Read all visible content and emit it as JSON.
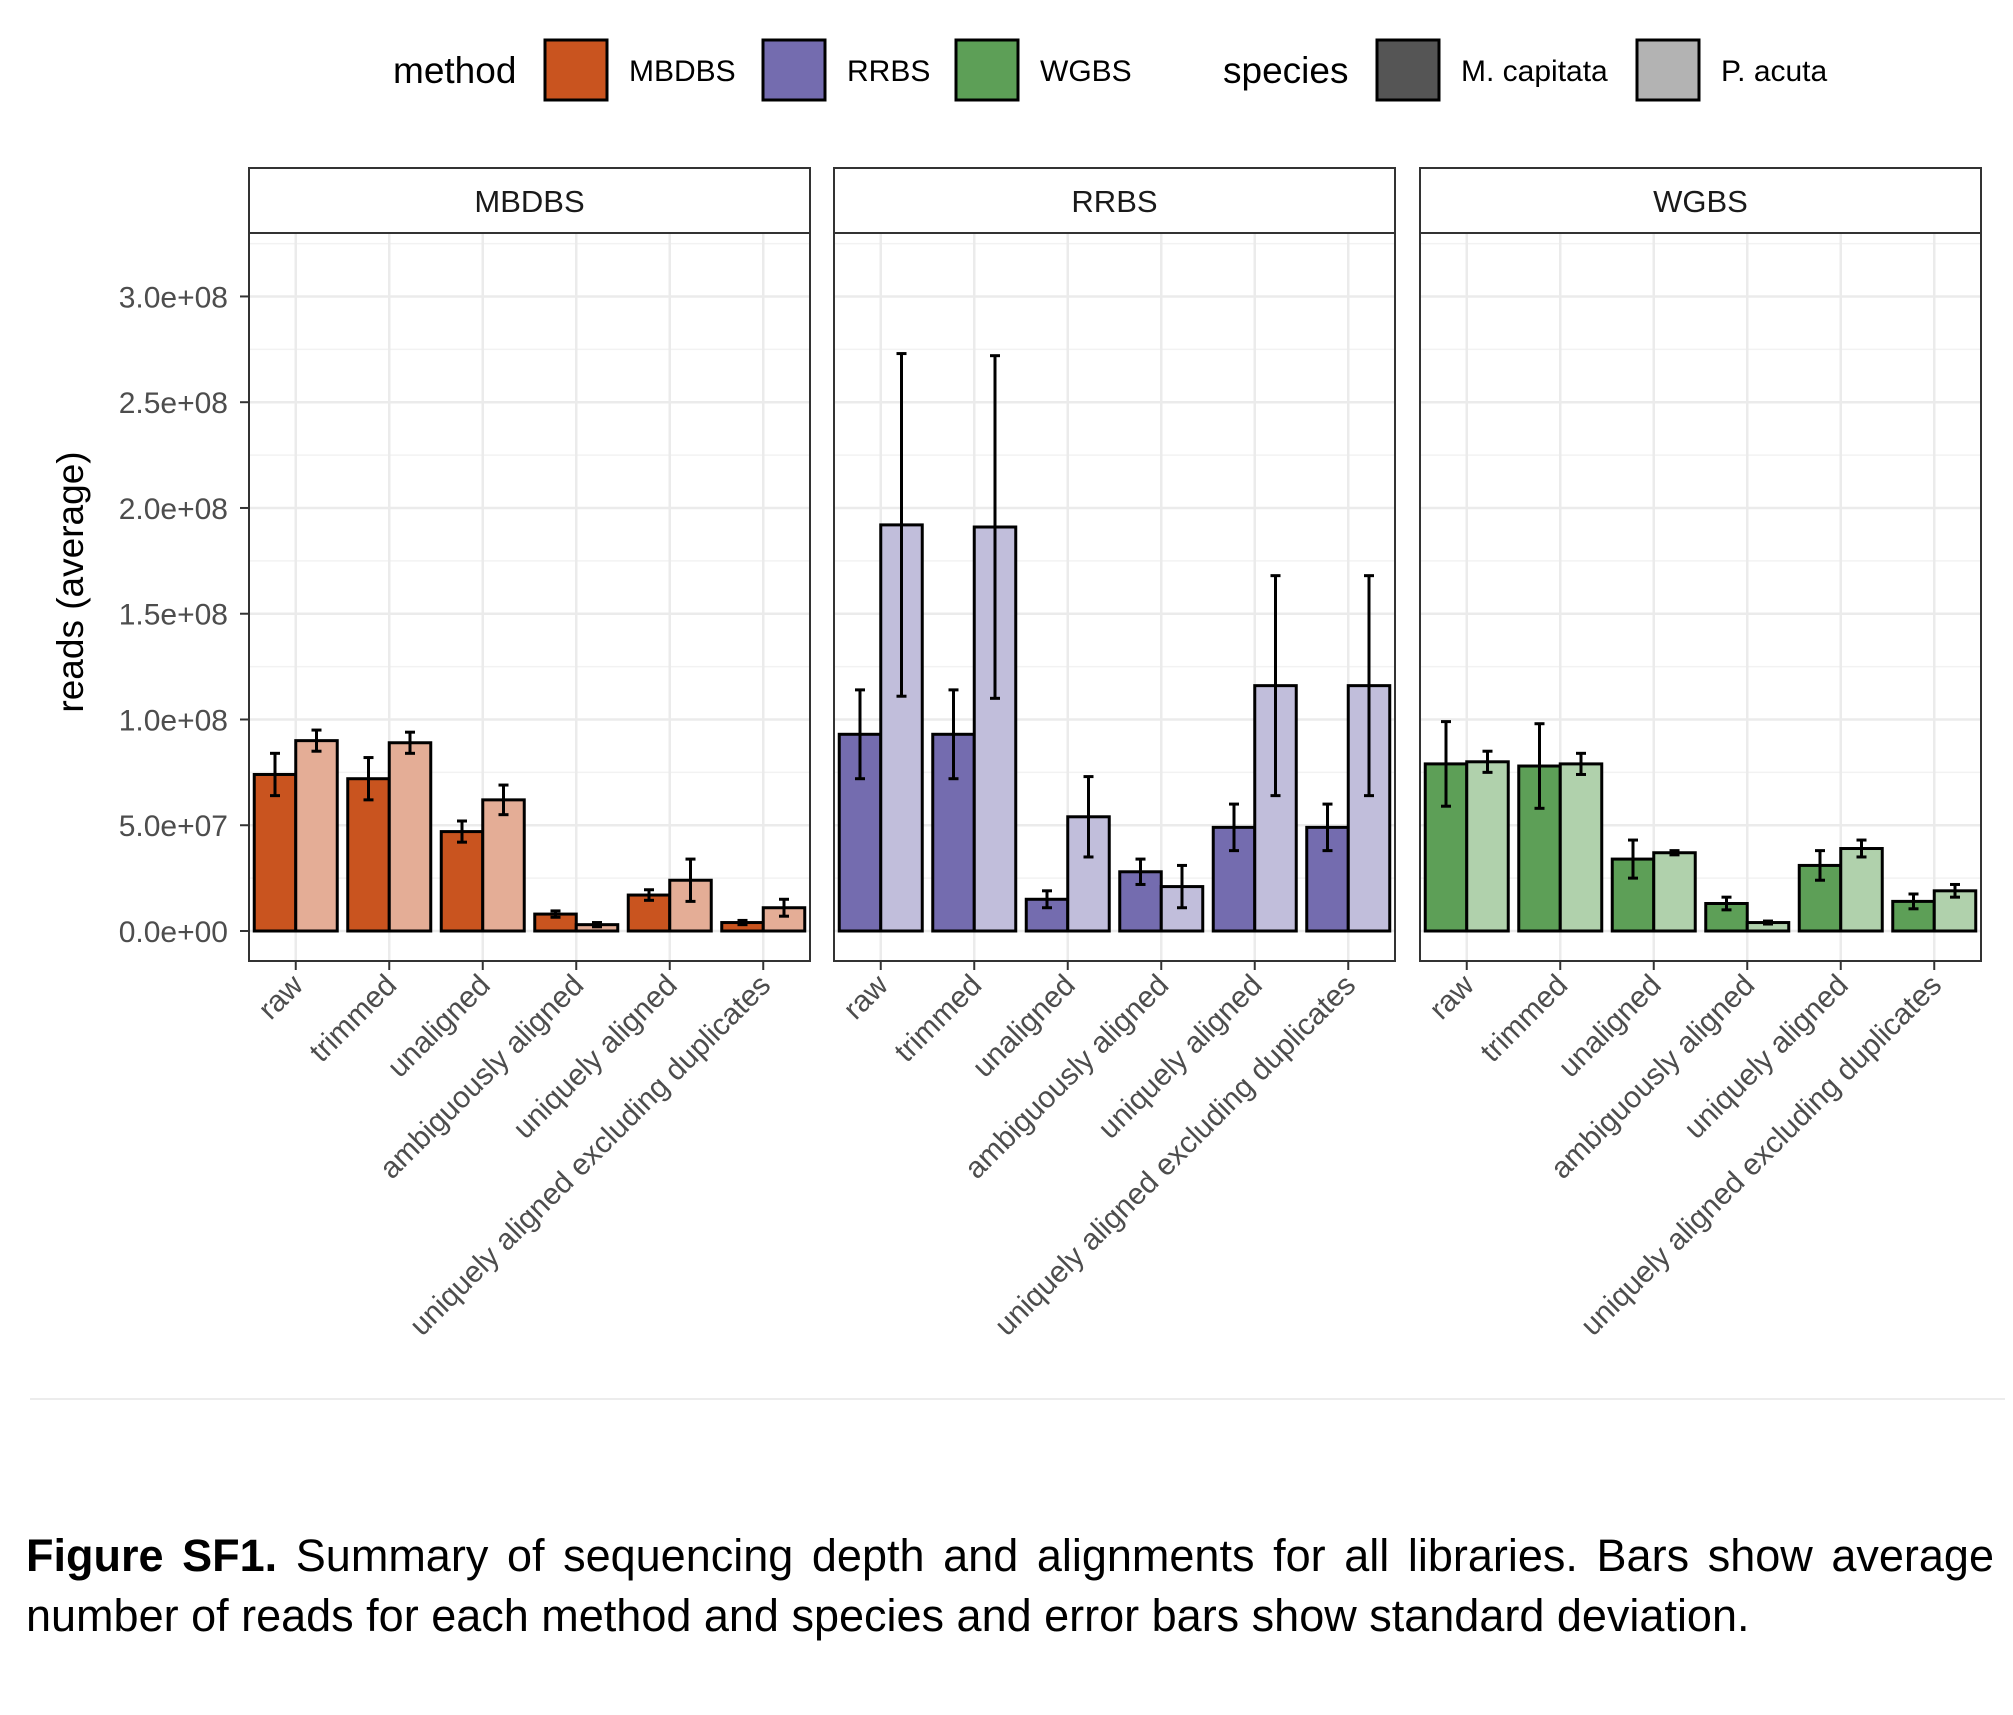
{
  "legend": {
    "method_title": "method",
    "species_title": "species",
    "method_items": [
      {
        "label": "MBDBS",
        "color": "#c9541f"
      },
      {
        "label": "RRBS",
        "color": "#746caf"
      },
      {
        "label": "WGBS",
        "color": "#5d9f57"
      }
    ],
    "species_items": [
      {
        "label": "M. capitata",
        "color": "#555555"
      },
      {
        "label": "P. acuta",
        "color": "#b3b3b3"
      }
    ]
  },
  "caption": {
    "label": "Figure SF1.",
    "text": "Summary of sequencing depth and alignments for all libraries. Bars show average number of reads for each method and species and error bars show standard deviation."
  },
  "chart_data": {
    "type": "bar",
    "ylabel": "reads (average)",
    "ylim": [
      0,
      330000000
    ],
    "y_ticks": [
      {
        "value": 0,
        "label": "0.0e+00"
      },
      {
        "value": 50000000,
        "label": "5.0e+07"
      },
      {
        "value": 100000000,
        "label": "1.0e+08"
      },
      {
        "value": 150000000,
        "label": "1.5e+08"
      },
      {
        "value": 200000000,
        "label": "2.0e+08"
      },
      {
        "value": 250000000,
        "label": "2.5e+08"
      },
      {
        "value": 300000000,
        "label": "3.0e+08"
      }
    ],
    "categories": [
      "raw",
      "trimmed",
      "unaligned",
      "ambiguously aligned",
      "uniquely aligned",
      "uniquely aligned excluding duplicates"
    ],
    "species": [
      "M. capitata",
      "P. acuta"
    ],
    "grid": true,
    "legend_position": "top",
    "panels": [
      {
        "title": "MBDBS",
        "colors": {
          "M. capitata": "#c9541f",
          "P. acuta": "#e4ad96"
        },
        "series": [
          {
            "name": "M. capitata",
            "values": [
              74000000,
              72000000,
              47000000,
              8000000,
              17000000,
              4000000
            ],
            "sd": [
              10000000,
              10000000,
              5000000,
              1500000,
              2500000,
              1000000
            ]
          },
          {
            "name": "P. acuta",
            "values": [
              90000000,
              89000000,
              62000000,
              3000000,
              24000000,
              11000000
            ],
            "sd": [
              5000000,
              5000000,
              7000000,
              1000000,
              10000000,
              4000000
            ]
          }
        ]
      },
      {
        "title": "RRBS",
        "colors": {
          "M. capitata": "#746caf",
          "P. acuta": "#c1bedb"
        },
        "series": [
          {
            "name": "M. capitata",
            "values": [
              93000000,
              93000000,
              15000000,
              28000000,
              49000000,
              49000000
            ],
            "sd": [
              21000000,
              21000000,
              4000000,
              6000000,
              11000000,
              11000000
            ]
          },
          {
            "name": "P. acuta",
            "values": [
              192000000,
              191000000,
              54000000,
              21000000,
              116000000,
              116000000
            ],
            "sd": [
              81000000,
              81000000,
              19000000,
              10000000,
              52000000,
              52000000
            ]
          }
        ]
      },
      {
        "title": "WGBS",
        "colors": {
          "M. capitata": "#5d9f57",
          "P. acuta": "#b0d1ac"
        },
        "series": [
          {
            "name": "M. capitata",
            "values": [
              79000000,
              78000000,
              34000000,
              13000000,
              31000000,
              14000000
            ],
            "sd": [
              20000000,
              20000000,
              9000000,
              3000000,
              7000000,
              3500000
            ]
          },
          {
            "name": "P. acuta",
            "values": [
              80000000,
              79000000,
              37000000,
              4000000,
              39000000,
              19000000
            ],
            "sd": [
              5000000,
              5000000,
              1000000,
              700000,
              4000000,
              3000000
            ]
          }
        ]
      }
    ]
  }
}
